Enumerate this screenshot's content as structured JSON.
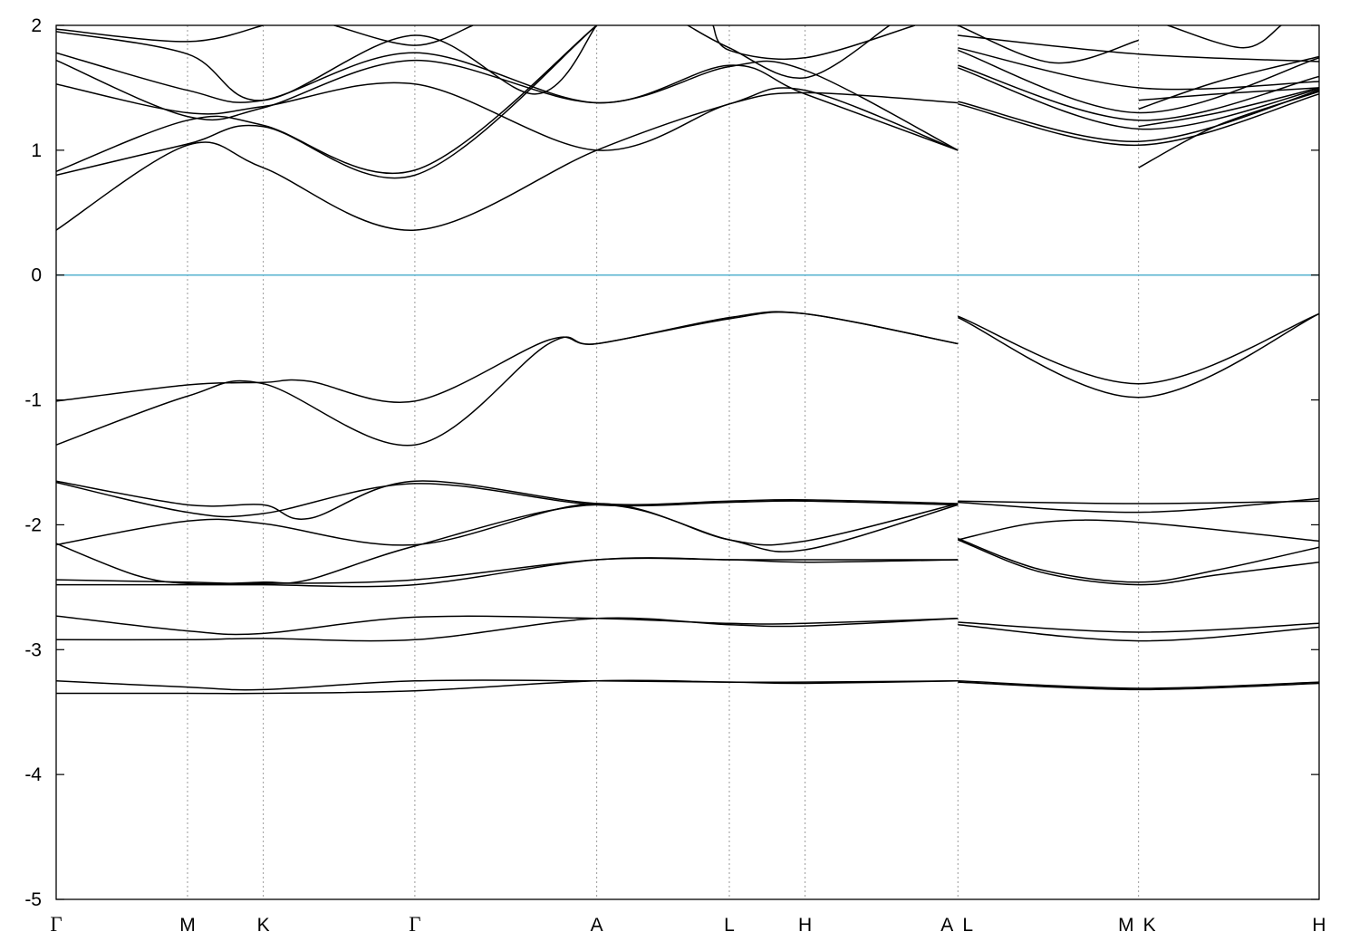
{
  "chart_data": {
    "type": "line",
    "title": "",
    "xlabel": "",
    "ylabel": "",
    "ylim": [
      -5,
      2
    ],
    "yticks": [
      2,
      1,
      0,
      -1,
      -2,
      -3,
      -4,
      -5
    ],
    "ytick_labels": [
      "2",
      "1",
      "0",
      "-1",
      "-2",
      "-3",
      "-4",
      "-5"
    ],
    "fermi_level": 0,
    "fermi_color": "#5ab4d0",
    "line_color": "#000000",
    "grid": "vertical dotted lines at high-symmetry points",
    "kpoints": [
      {
        "label": "Γ",
        "x": 0.0,
        "greek": true
      },
      {
        "label": "M",
        "x": 0.104
      },
      {
        "label": "K",
        "x": 0.164
      },
      {
        "label": "Γ",
        "x": 0.284,
        "greek": true
      },
      {
        "label": "A",
        "x": 0.428
      },
      {
        "label": "L",
        "x": 0.533
      },
      {
        "label": "H",
        "x": 0.593
      },
      {
        "label": "A",
        "x": 0.714
      },
      {
        "label": "L",
        "x": 0.714
      },
      {
        "label": "M",
        "x": 0.857
      },
      {
        "label": "K",
        "x": 0.857
      },
      {
        "label": "H",
        "x": 1.0
      }
    ],
    "series": [
      {
        "points": [
          [
            0.0,
            -3.35
          ],
          [
            0.104,
            -3.35
          ],
          [
            0.164,
            -3.35
          ],
          [
            0.284,
            -3.33
          ],
          [
            0.428,
            -3.25
          ],
          [
            0.533,
            -3.26
          ],
          [
            0.593,
            -3.27
          ],
          [
            0.714,
            -3.25
          ]
        ]
      },
      {
        "points": [
          [
            0.0,
            -3.25
          ],
          [
            0.104,
            -3.3
          ],
          [
            0.164,
            -3.32
          ],
          [
            0.284,
            -3.25
          ],
          [
            0.428,
            -3.25
          ],
          [
            0.533,
            -3.26
          ],
          [
            0.593,
            -3.26
          ],
          [
            0.714,
            -3.25
          ]
        ]
      },
      {
        "points": [
          [
            0.714,
            -3.26
          ],
          [
            0.857,
            -3.32
          ],
          [
            1.0,
            -3.27
          ]
        ]
      },
      {
        "points": [
          [
            0.714,
            -3.25
          ],
          [
            0.857,
            -3.31
          ],
          [
            1.0,
            -3.26
          ]
        ]
      },
      {
        "points": [
          [
            0.0,
            -2.92
          ],
          [
            0.104,
            -2.92
          ],
          [
            0.164,
            -2.91
          ],
          [
            0.284,
            -2.92
          ],
          [
            0.428,
            -2.75
          ],
          [
            0.533,
            -2.8
          ],
          [
            0.593,
            -2.81
          ],
          [
            0.714,
            -2.75
          ]
        ]
      },
      {
        "points": [
          [
            0.0,
            -2.73
          ],
          [
            0.104,
            -2.85
          ],
          [
            0.164,
            -2.87
          ],
          [
            0.284,
            -2.74
          ],
          [
            0.428,
            -2.75
          ],
          [
            0.533,
            -2.79
          ],
          [
            0.593,
            -2.79
          ],
          [
            0.714,
            -2.75
          ]
        ]
      },
      {
        "points": [
          [
            0.714,
            -2.8
          ],
          [
            0.857,
            -2.93
          ],
          [
            1.0,
            -2.82
          ]
        ]
      },
      {
        "points": [
          [
            0.714,
            -2.78
          ],
          [
            0.857,
            -2.86
          ],
          [
            1.0,
            -2.79
          ]
        ]
      },
      {
        "points": [
          [
            0.0,
            -2.48
          ],
          [
            0.104,
            -2.48
          ],
          [
            0.164,
            -2.48
          ],
          [
            0.284,
            -2.48
          ],
          [
            0.428,
            -2.28
          ],
          [
            0.533,
            -2.28
          ],
          [
            0.593,
            -2.3
          ],
          [
            0.714,
            -2.28
          ]
        ]
      },
      {
        "points": [
          [
            0.0,
            -2.44
          ],
          [
            0.104,
            -2.46
          ],
          [
            0.164,
            -2.47
          ],
          [
            0.284,
            -2.44
          ],
          [
            0.428,
            -2.28
          ],
          [
            0.533,
            -2.28
          ],
          [
            0.593,
            -2.28
          ],
          [
            0.714,
            -2.28
          ]
        ]
      },
      {
        "points": [
          [
            0.0,
            -2.15
          ],
          [
            0.062,
            -2.4
          ],
          [
            0.104,
            -2.47
          ],
          [
            0.164,
            -2.46
          ],
          [
            0.2,
            -2.44
          ],
          [
            0.284,
            -2.17
          ],
          [
            0.428,
            -1.84
          ],
          [
            0.533,
            -2.12
          ],
          [
            0.593,
            -2.2
          ],
          [
            0.714,
            -1.84
          ]
        ]
      },
      {
        "points": [
          [
            0.0,
            -2.16
          ],
          [
            0.104,
            -1.97
          ],
          [
            0.164,
            -1.99
          ],
          [
            0.284,
            -2.16
          ],
          [
            0.428,
            -1.83
          ],
          [
            0.533,
            -2.12
          ],
          [
            0.593,
            -2.13
          ],
          [
            0.714,
            -1.83
          ]
        ]
      },
      {
        "points": [
          [
            0.0,
            -1.66
          ],
          [
            0.104,
            -1.9
          ],
          [
            0.164,
            -1.91
          ],
          [
            0.284,
            -1.67
          ],
          [
            0.428,
            -1.84
          ],
          [
            0.533,
            -1.82
          ],
          [
            0.593,
            -1.81
          ],
          [
            0.714,
            -1.84
          ]
        ]
      },
      {
        "points": [
          [
            0.0,
            -1.65
          ],
          [
            0.104,
            -1.84
          ],
          [
            0.164,
            -1.84
          ],
          [
            0.2,
            -1.95
          ],
          [
            0.284,
            -1.65
          ],
          [
            0.428,
            -1.83
          ],
          [
            0.533,
            -1.81
          ],
          [
            0.593,
            -1.8
          ],
          [
            0.714,
            -1.83
          ]
        ]
      },
      {
        "points": [
          [
            0.714,
            -2.12
          ],
          [
            0.78,
            -2.38
          ],
          [
            0.857,
            -2.48
          ],
          [
            0.92,
            -2.4
          ],
          [
            1.0,
            -2.3
          ]
        ]
      },
      {
        "points": [
          [
            0.714,
            -2.11
          ],
          [
            0.78,
            -2.36
          ],
          [
            0.857,
            -2.46
          ],
          [
            0.92,
            -2.36
          ],
          [
            1.0,
            -2.18
          ]
        ]
      },
      {
        "points": [
          [
            0.714,
            -2.12
          ],
          [
            0.78,
            -1.98
          ],
          [
            0.857,
            -1.98
          ],
          [
            1.0,
            -2.13
          ]
        ]
      },
      {
        "points": [
          [
            0.714,
            -1.82
          ],
          [
            0.857,
            -1.9
          ],
          [
            1.0,
            -1.79
          ]
        ]
      },
      {
        "points": [
          [
            0.714,
            -1.81
          ],
          [
            0.857,
            -1.83
          ],
          [
            1.0,
            -1.81
          ]
        ]
      },
      {
        "points": [
          [
            0.0,
            -1.36
          ],
          [
            0.104,
            -0.97
          ],
          [
            0.164,
            -0.87
          ],
          [
            0.284,
            -1.36
          ],
          [
            0.39,
            -0.55
          ],
          [
            0.428,
            -0.55
          ],
          [
            0.533,
            -0.35
          ],
          [
            0.593,
            -0.31
          ],
          [
            0.714,
            -0.55
          ]
        ]
      },
      {
        "points": [
          [
            0.0,
            -1.01
          ],
          [
            0.104,
            -0.88
          ],
          [
            0.164,
            -0.86
          ],
          [
            0.2,
            -0.85
          ],
          [
            0.284,
            -1.01
          ],
          [
            0.39,
            -0.52
          ],
          [
            0.428,
            -0.55
          ],
          [
            0.533,
            -0.34
          ],
          [
            0.593,
            -0.31
          ],
          [
            0.714,
            -0.55
          ]
        ]
      },
      {
        "points": [
          [
            0.714,
            -0.34
          ],
          [
            0.857,
            -0.98
          ],
          [
            1.0,
            -0.31
          ]
        ]
      },
      {
        "points": [
          [
            0.714,
            -0.33
          ],
          [
            0.857,
            -0.87
          ],
          [
            1.0,
            -0.31
          ]
        ]
      },
      {
        "points": [
          [
            0.0,
            0.36
          ],
          [
            0.104,
            1.04
          ],
          [
            0.164,
            0.86
          ],
          [
            0.284,
            0.36
          ],
          [
            0.428,
            1.0
          ],
          [
            0.533,
            1.37
          ],
          [
            0.593,
            1.48
          ],
          [
            0.714,
            1.0
          ]
        ]
      },
      {
        "points": [
          [
            0.0,
            0.8
          ],
          [
            0.104,
            1.05
          ],
          [
            0.164,
            1.19
          ],
          [
            0.284,
            0.8
          ],
          [
            0.428,
            2.0
          ]
        ]
      },
      {
        "points": [
          [
            0.0,
            0.83
          ],
          [
            0.104,
            1.24
          ],
          [
            0.164,
            1.2
          ],
          [
            0.284,
            0.84
          ],
          [
            0.428,
            2.0
          ]
        ]
      },
      {
        "points": [
          [
            0.0,
            1.53
          ],
          [
            0.104,
            1.3
          ],
          [
            0.164,
            1.35
          ],
          [
            0.284,
            1.53
          ],
          [
            0.428,
            1.0
          ],
          [
            0.533,
            1.37
          ],
          [
            0.593,
            1.46
          ],
          [
            0.714,
            1.38
          ]
        ]
      },
      {
        "points": [
          [
            0.0,
            1.72
          ],
          [
            0.104,
            1.27
          ],
          [
            0.164,
            1.34
          ],
          [
            0.284,
            1.72
          ],
          [
            0.428,
            1.38
          ],
          [
            0.533,
            1.67
          ],
          [
            0.593,
            1.64
          ],
          [
            0.714,
            1.0
          ]
        ]
      },
      {
        "points": [
          [
            0.0,
            1.78
          ],
          [
            0.104,
            1.48
          ],
          [
            0.164,
            1.4
          ],
          [
            0.284,
            1.78
          ],
          [
            0.428,
            1.38
          ],
          [
            0.533,
            1.68
          ],
          [
            0.593,
            1.45
          ],
          [
            0.714,
            1.0
          ]
        ]
      },
      {
        "points": [
          [
            0.0,
            1.95
          ],
          [
            0.104,
            1.77
          ],
          [
            0.164,
            1.4
          ],
          [
            0.284,
            1.92
          ],
          [
            0.38,
            1.45
          ],
          [
            0.428,
            2.0
          ]
        ]
      },
      {
        "points": [
          [
            0.0,
            1.97
          ],
          [
            0.104,
            1.87
          ],
          [
            0.164,
            2.0
          ]
        ]
      },
      {
        "points": [
          [
            0.22,
            2.0
          ],
          [
            0.284,
            1.84
          ],
          [
            0.33,
            2.0
          ]
        ]
      },
      {
        "points": [
          [
            0.5,
            2.0
          ],
          [
            0.533,
            1.82
          ],
          [
            0.593,
            1.58
          ],
          [
            0.66,
            2.0
          ]
        ]
      },
      {
        "points": [
          [
            0.52,
            2.0
          ],
          [
            0.533,
            1.8
          ],
          [
            0.593,
            1.74
          ],
          [
            0.68,
            2.0
          ]
        ]
      },
      {
        "points": [
          [
            0.714,
            1.37
          ],
          [
            0.857,
            1.04
          ],
          [
            1.0,
            1.45
          ]
        ]
      },
      {
        "points": [
          [
            0.714,
            1.39
          ],
          [
            0.857,
            1.07
          ],
          [
            1.0,
            1.48
          ]
        ]
      },
      {
        "points": [
          [
            0.714,
            1.66
          ],
          [
            0.857,
            1.17
          ],
          [
            1.0,
            1.49
          ]
        ]
      },
      {
        "points": [
          [
            0.714,
            1.68
          ],
          [
            0.857,
            1.24
          ],
          [
            1.0,
            1.59
          ]
        ]
      },
      {
        "points": [
          [
            0.714,
            1.8
          ],
          [
            0.857,
            1.3
          ],
          [
            1.0,
            1.74
          ]
        ]
      },
      {
        "points": [
          [
            0.714,
            1.82
          ],
          [
            0.857,
            1.5
          ],
          [
            1.0,
            1.55
          ]
        ]
      },
      {
        "points": [
          [
            0.714,
            1.92
          ],
          [
            0.857,
            1.77
          ],
          [
            1.0,
            1.71
          ]
        ]
      },
      {
        "points": [
          [
            0.714,
            2.0
          ],
          [
            0.79,
            1.7
          ],
          [
            0.857,
            1.88
          ]
        ]
      },
      {
        "points": [
          [
            0.857,
            0.86
          ],
          [
            0.92,
            1.2
          ],
          [
            1.0,
            1.47
          ]
        ]
      },
      {
        "points": [
          [
            0.857,
            1.19
          ],
          [
            0.92,
            1.3
          ],
          [
            1.0,
            1.5
          ]
        ]
      },
      {
        "points": [
          [
            0.857,
            1.33
          ],
          [
            0.92,
            1.55
          ],
          [
            1.0,
            1.75
          ]
        ]
      },
      {
        "points": [
          [
            0.857,
            1.4
          ],
          [
            0.92,
            1.45
          ],
          [
            1.0,
            1.5
          ]
        ]
      },
      {
        "points": [
          [
            0.88,
            2.0
          ],
          [
            0.94,
            1.82
          ],
          [
            0.97,
            2.0
          ]
        ]
      }
    ]
  }
}
